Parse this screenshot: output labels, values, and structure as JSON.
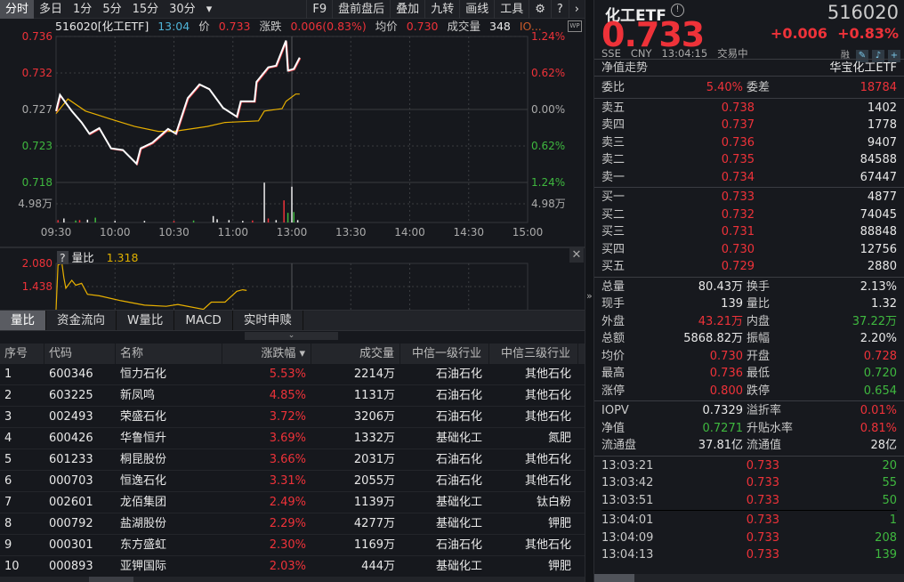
{
  "toolbar": {
    "left": [
      "分时",
      "多日",
      "1分",
      "5分",
      "15分",
      "30分"
    ],
    "more_icon": "caret-down",
    "right": [
      "F9",
      "盘前盘后",
      "叠加",
      "九转",
      "画线",
      "工具"
    ],
    "icons": [
      "gear-icon",
      "help-icon",
      "chevron-right-icon"
    ]
  },
  "info": {
    "code_name": "516020[化工ETF]",
    "time": "13:04",
    "price_label": "价",
    "price": "0.733",
    "change_label": "涨跌",
    "change": "0.006(0.83%)",
    "avg_label": "均价",
    "avg": "0.730",
    "vol_label": "成交量",
    "vol": "348",
    "iopv_trunc": "IO..."
  },
  "chart_data": {
    "type": "line",
    "y_ticks_left": [
      "0.736",
      "0.732",
      "0.727",
      "0.723",
      "0.718"
    ],
    "y_ticks_right": [
      "1.24%",
      "0.62%",
      "0.00%",
      "0.62%",
      "1.24%"
    ],
    "ylim": [
      0.718,
      0.736
    ],
    "prev_close": 0.727,
    "x_ticks": [
      "09:30",
      "10:00",
      "10:30",
      "11:00",
      "13:00",
      "13:30",
      "14:00",
      "14:30",
      "15:00"
    ],
    "volume_tick": "4.98万",
    "volume_max_wan": 9.96,
    "price_series": [
      [
        0,
        0.7268
      ],
      [
        2,
        0.7288
      ],
      [
        8,
        0.7268
      ],
      [
        13,
        0.7254
      ],
      [
        17,
        0.724
      ],
      [
        22,
        0.7247
      ],
      [
        28,
        0.7222
      ],
      [
        34,
        0.722
      ],
      [
        41,
        0.7203
      ],
      [
        43,
        0.7222
      ],
      [
        49,
        0.7229
      ],
      [
        57,
        0.7246
      ],
      [
        61,
        0.724
      ],
      [
        67,
        0.7284
      ],
      [
        73,
        0.7301
      ],
      [
        78,
        0.7295
      ],
      [
        85,
        0.7272
      ],
      [
        92,
        0.7261
      ],
      [
        94,
        0.728
      ],
      [
        101,
        0.728
      ],
      [
        102,
        0.7304
      ],
      [
        108,
        0.7322
      ],
      [
        112,
        0.7324
      ],
      [
        117,
        0.7355
      ],
      [
        118,
        0.7318
      ],
      [
        121,
        0.732
      ],
      [
        124,
        0.7334
      ]
    ],
    "avg_series": [
      [
        0,
        0.7265
      ],
      [
        6,
        0.7283
      ],
      [
        15,
        0.7268
      ],
      [
        28,
        0.7258
      ],
      [
        40,
        0.7249
      ],
      [
        52,
        0.7243
      ],
      [
        60,
        0.7243
      ],
      [
        77,
        0.7249
      ],
      [
        86,
        0.7254
      ],
      [
        103,
        0.7256
      ],
      [
        106,
        0.7268
      ],
      [
        115,
        0.7271
      ],
      [
        117,
        0.728
      ],
      [
        122,
        0.7289
      ],
      [
        124,
        0.7289
      ]
    ],
    "volume_series": [
      [
        1,
        0.6,
        "r"
      ],
      [
        4,
        1.0,
        "w"
      ],
      [
        10,
        0.5,
        "g"
      ],
      [
        12,
        0.6,
        "r"
      ],
      [
        16,
        0.7,
        "w"
      ],
      [
        20,
        1.2,
        "g"
      ],
      [
        30,
        0.4,
        "w"
      ],
      [
        45,
        0.4,
        "w"
      ],
      [
        60,
        0.4,
        "r"
      ],
      [
        70,
        0.5,
        "g"
      ],
      [
        80,
        1.6,
        "w"
      ],
      [
        82,
        0.8,
        "w"
      ],
      [
        88,
        0.6,
        "w"
      ],
      [
        95,
        0.4,
        "w"
      ],
      [
        100,
        0.5,
        "r"
      ],
      [
        106,
        9.9,
        "w"
      ],
      [
        108,
        1.0,
        "r"
      ],
      [
        112,
        0.6,
        "w"
      ],
      [
        116,
        5.5,
        "r"
      ],
      [
        118,
        2.4,
        "g"
      ],
      [
        120,
        8.9,
        "w"
      ],
      [
        121,
        2.6,
        "g"
      ],
      [
        123,
        0.6,
        "w"
      ]
    ],
    "indicator": {
      "name": "量比",
      "help": "?",
      "value": "1.318",
      "ticks": [
        "2.080",
        "1.438"
      ],
      "ylim": [
        0.85,
        2.08
      ],
      "series": [
        [
          0,
          0.85
        ],
        [
          1,
          2.04
        ],
        [
          3,
          2.08
        ],
        [
          4,
          1.7
        ],
        [
          5,
          1.42
        ],
        [
          8,
          1.63
        ],
        [
          10,
          1.5
        ],
        [
          13,
          1.55
        ],
        [
          16,
          1.26
        ],
        [
          22,
          1.22
        ],
        [
          33,
          1.09
        ],
        [
          45,
          0.97
        ],
        [
          56,
          0.94
        ],
        [
          62,
          0.99
        ],
        [
          75,
          0.86
        ],
        [
          79,
          1.05
        ],
        [
          86,
          1.05
        ],
        [
          92,
          1.34
        ],
        [
          95,
          1.38
        ],
        [
          97,
          1.36
        ]
      ]
    }
  },
  "indicator_tabs": [
    "量比",
    "资金流向",
    "W量比",
    "MACD",
    "实时申赎"
  ],
  "table": {
    "headers": [
      "序号",
      "代码",
      "名称",
      "涨跌幅 ▾",
      "成交量",
      "中信一级行业",
      "中信三级行业"
    ],
    "rows": [
      [
        "1",
        "600346",
        "恒力石化",
        "5.53%",
        "2214万",
        "石油石化",
        "其他石化"
      ],
      [
        "2",
        "603225",
        "新凤鸣",
        "4.85%",
        "1131万",
        "石油石化",
        "其他石化"
      ],
      [
        "3",
        "002493",
        "荣盛石化",
        "3.72%",
        "3206万",
        "石油石化",
        "其他石化"
      ],
      [
        "4",
        "600426",
        "华鲁恒升",
        "3.69%",
        "1332万",
        "基础化工",
        "氮肥"
      ],
      [
        "5",
        "601233",
        "桐昆股份",
        "3.66%",
        "2031万",
        "石油石化",
        "其他石化"
      ],
      [
        "6",
        "000703",
        "恒逸石化",
        "3.31%",
        "2055万",
        "石油石化",
        "其他石化"
      ],
      [
        "7",
        "002601",
        "龙佰集团",
        "2.49%",
        "1139万",
        "基础化工",
        "钛白粉"
      ],
      [
        "8",
        "000792",
        "盐湖股份",
        "2.29%",
        "4277万",
        "基础化工",
        "钾肥"
      ],
      [
        "9",
        "000301",
        "东方盛虹",
        "2.30%",
        "1169万",
        "石油石化",
        "其他石化"
      ],
      [
        "10",
        "000893",
        "亚钾国际",
        "2.03%",
        "444万",
        "基础化工",
        "钾肥"
      ]
    ]
  },
  "quote": {
    "name": "化工ETF",
    "code": "516020",
    "price": "0.733",
    "change": "+0.006",
    "pct": "+0.83%",
    "exchange": "SSE",
    "currency": "CNY",
    "time": "13:04:15",
    "status": "交易中",
    "margin_tag": "融",
    "nav_trend": "净值走势",
    "fund_name": "华宝化工ETF",
    "wb_label": "委比",
    "wb": "5.40%",
    "wc_label": "委差",
    "wc": "18784",
    "sells": [
      [
        "卖五",
        "0.738",
        "1402"
      ],
      [
        "卖四",
        "0.737",
        "1778"
      ],
      [
        "卖三",
        "0.736",
        "9407"
      ],
      [
        "卖二",
        "0.735",
        "84588"
      ],
      [
        "卖一",
        "0.734",
        "67447"
      ]
    ],
    "buys": [
      [
        "买一",
        "0.733",
        "4877"
      ],
      [
        "买二",
        "0.732",
        "74045"
      ],
      [
        "买三",
        "0.731",
        "88848"
      ],
      [
        "买四",
        "0.730",
        "12756"
      ],
      [
        "买五",
        "0.729",
        "2880"
      ]
    ],
    "stats": [
      [
        "总量",
        "80.43万",
        "w",
        "换手",
        "2.13%",
        "w"
      ],
      [
        "现手",
        "139",
        "w",
        "量比",
        "1.32",
        "w"
      ],
      [
        "外盘",
        "43.21万",
        "r",
        "内盘",
        "37.22万",
        "g"
      ],
      [
        "总额",
        "5868.82万",
        "w",
        "振幅",
        "2.20%",
        "w"
      ],
      [
        "均价",
        "0.730",
        "r",
        "开盘",
        "0.728",
        "r"
      ],
      [
        "最高",
        "0.736",
        "r",
        "最低",
        "0.720",
        "g"
      ],
      [
        "涨停",
        "0.800",
        "r",
        "跌停",
        "0.654",
        "g"
      ]
    ],
    "fund": [
      [
        "IOPV",
        "0.7329",
        "w",
        "溢折率",
        "0.01%",
        "r"
      ],
      [
        "净值",
        "0.7271",
        "g",
        "升贴水率",
        "0.81%",
        "r"
      ],
      [
        "流通盘",
        "37.81亿",
        "w",
        "流通值",
        "28亿",
        "w"
      ]
    ],
    "ticks1": [
      [
        "13:03:21",
        "0.733",
        "20"
      ],
      [
        "13:03:42",
        "0.733",
        "55"
      ],
      [
        "13:03:51",
        "0.733",
        "50"
      ]
    ],
    "ticks2": [
      [
        "13:04:01",
        "0.733",
        "1"
      ],
      [
        "13:04:09",
        "0.733",
        "208"
      ],
      [
        "13:04:13",
        "0.733",
        "139"
      ]
    ]
  },
  "colors": {
    "up": "#ee3239",
    "down": "#3fb83f",
    "price_line": "#ffffff",
    "avg_line": "#e8b000",
    "bg": "#16181d"
  }
}
